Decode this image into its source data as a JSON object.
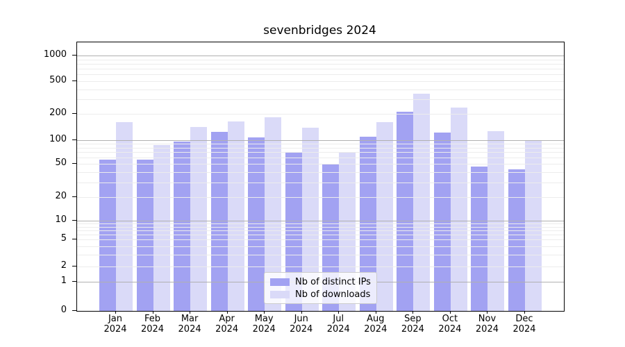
{
  "title": "sevenbridges 2024",
  "chart_data": {
    "type": "bar",
    "title": "sevenbridges 2024",
    "categories": [
      "Jan",
      "Feb",
      "Mar",
      "Apr",
      "May",
      "Jun",
      "Jul",
      "Aug",
      "Sep",
      "Oct",
      "Nov",
      "Dec"
    ],
    "category_year": "2024",
    "series": [
      {
        "name": "Nb of distinct IPs",
        "color": "#a2a2f2",
        "values": [
          57,
          57,
          96,
          125,
          107,
          70,
          49,
          110,
          212,
          123,
          46,
          43
        ]
      },
      {
        "name": "Nb of downloads",
        "color": "#dadaf8",
        "values": [
          160,
          86,
          142,
          165,
          185,
          140,
          70,
          160,
          350,
          240,
          127,
          100
        ]
      }
    ],
    "yscale": "symlog",
    "yticks": [
      0,
      1,
      2,
      5,
      10,
      20,
      50,
      100,
      200,
      500,
      1000
    ],
    "minor_gridlines": [
      3,
      4,
      6,
      7,
      8,
      9,
      30,
      40,
      60,
      70,
      80,
      90,
      300,
      400,
      600,
      700,
      800,
      900
    ],
    "ylim": [
      0,
      1400
    ],
    "grid": true,
    "legend": {
      "position": "lower center"
    }
  }
}
